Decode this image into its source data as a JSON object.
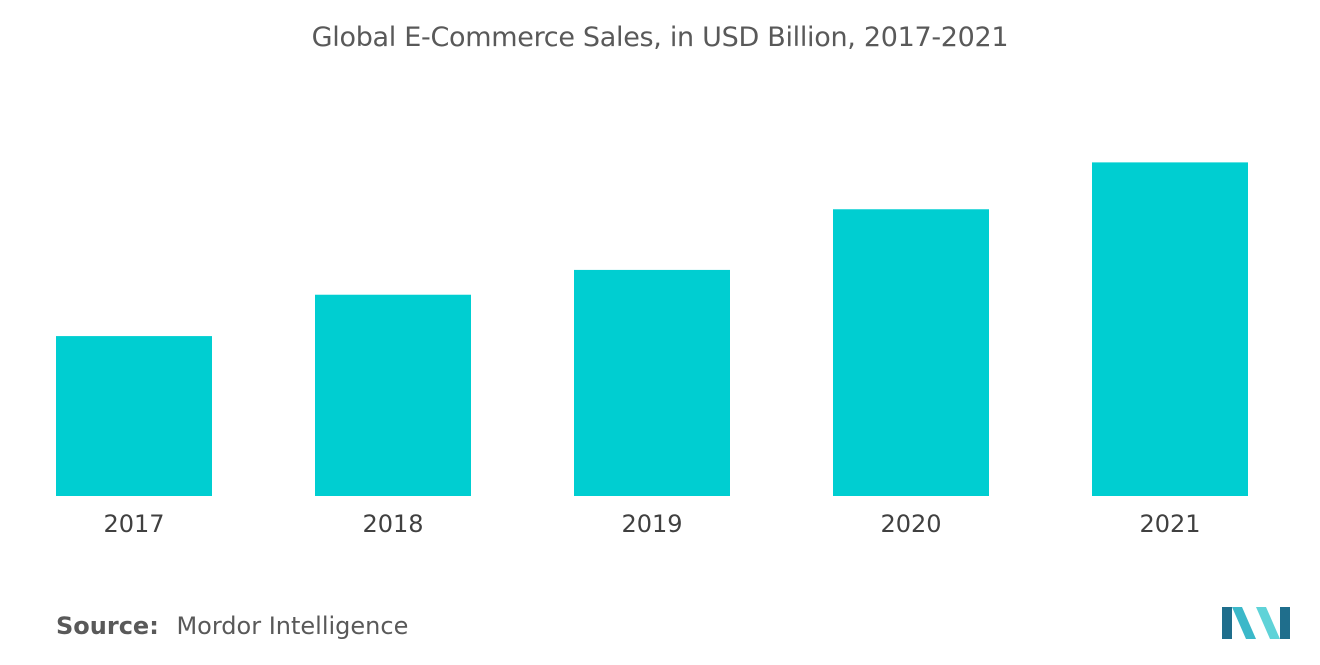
{
  "chart_data": {
    "type": "bar",
    "title": "Global E-Commerce Sales, in USD Billion, 2017-2021",
    "categories": [
      "2017",
      "2018",
      "2019",
      "2020",
      "2021"
    ],
    "values": [
      2.9,
      3.65,
      4.1,
      5.2,
      6.05
    ],
    "xlabel": "",
    "ylabel": "",
    "ylim": [
      0,
      7
    ],
    "grid": false,
    "legend": "none",
    "bar_color": "#00CED1"
  },
  "source": {
    "label": "Source:",
    "text": "Mordor Intelligence"
  },
  "logo": {
    "icon": "mordor-intelligence-logo",
    "colors": [
      "#1F6E8C",
      "#3BB8C9",
      "#5FD3D8"
    ]
  }
}
